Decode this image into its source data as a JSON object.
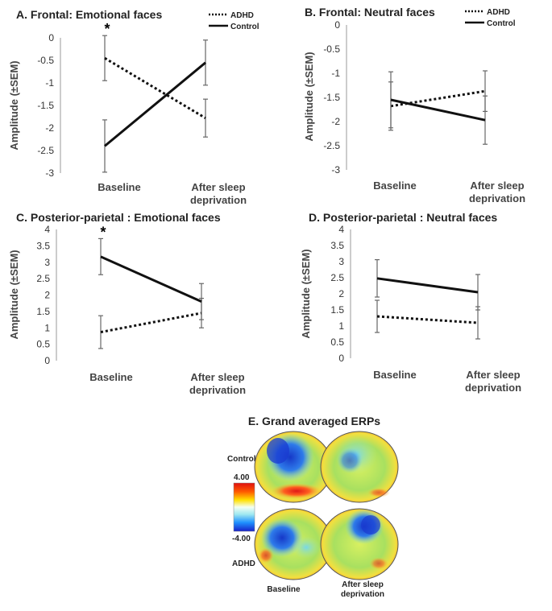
{
  "charts": [
    {
      "title": "A. Frontal: Emotional faces",
      "ylabel": "Amplitude (±SEM)",
      "yticks": [
        "0",
        "-0.5",
        "-1",
        "-1.5",
        "-2",
        "-2.5",
        "-3"
      ],
      "ylim": [
        -3,
        0
      ],
      "categories": [
        "Baseline",
        "After sleep deprivation"
      ],
      "category_lines": [
        [
          "Baseline"
        ],
        [
          "After sleep",
          "deprivation"
        ]
      ],
      "legend": [
        "ADHD",
        "Control"
      ],
      "annotation": "*",
      "series": [
        {
          "name": "ADHD",
          "style": "dotted",
          "values": [
            -0.45,
            -1.78
          ],
          "err": [
            0.5,
            0.42
          ]
        },
        {
          "name": "Control",
          "style": "solid",
          "values": [
            -2.4,
            -0.55
          ],
          "err": [
            0.58,
            0.5
          ]
        }
      ]
    },
    {
      "title": "B. Frontal: Neutral faces",
      "ylabel": "Amplitude (±SEM)",
      "yticks": [
        "0",
        "-0.5",
        "-1",
        "-1.5",
        "-2",
        "-2.5",
        "-3"
      ],
      "ylim": [
        -3,
        0
      ],
      "categories": [
        "Baseline",
        "After sleep deprivation"
      ],
      "category_lines": [
        [
          "Baseline"
        ],
        [
          "After sleep",
          "deprivation"
        ]
      ],
      "legend": [
        "ADHD",
        "Control"
      ],
      "annotation": "",
      "series": [
        {
          "name": "ADHD",
          "style": "dotted",
          "values": [
            -1.68,
            -1.37
          ],
          "err": [
            0.5,
            0.42
          ]
        },
        {
          "name": "Control",
          "style": "solid",
          "values": [
            -1.55,
            -1.97
          ],
          "err": [
            0.58,
            0.5
          ]
        }
      ]
    },
    {
      "title": "C. Posterior-parietal : Emotional faces",
      "ylabel": "Amplitude (±SEM)",
      "yticks": [
        "4",
        "3.5",
        "3",
        "2.5",
        "2",
        "1.5",
        "1",
        "0.5",
        "0"
      ],
      "ylim": [
        0,
        4
      ],
      "categories": [
        "Baseline",
        "After sleep deprivation"
      ],
      "category_lines": [
        [
          "Baseline"
        ],
        [
          "After sleep",
          "deprivation"
        ]
      ],
      "legend": [],
      "annotation": "*",
      "series": [
        {
          "name": "ADHD",
          "style": "dotted",
          "values": [
            0.87,
            1.45
          ],
          "err": [
            0.5,
            0.45
          ]
        },
        {
          "name": "Control",
          "style": "solid",
          "values": [
            3.17,
            1.8
          ],
          "err": [
            0.55,
            0.55
          ]
        }
      ]
    },
    {
      "title": "D. Posterior-parietal : Neutral faces",
      "ylabel": "Amplitude (±SEM)",
      "yticks": [
        "4",
        "3.5",
        "3",
        "2.5",
        "2",
        "1.5",
        "1",
        "0.5",
        "0"
      ],
      "ylim": [
        0,
        4
      ],
      "categories": [
        "Baseline",
        "After sleep deprivation"
      ],
      "category_lines": [
        [
          "Baseline"
        ],
        [
          "After sleep",
          "deprivation"
        ]
      ],
      "legend": [],
      "annotation": "",
      "series": [
        {
          "name": "ADHD",
          "style": "dotted",
          "values": [
            1.3,
            1.1
          ],
          "err": [
            0.5,
            0.5
          ]
        },
        {
          "name": "Control",
          "style": "solid",
          "values": [
            2.48,
            2.05
          ],
          "err": [
            0.58,
            0.55
          ]
        }
      ]
    }
  ],
  "erp_panel": {
    "title": "E. Grand averaged ERPs",
    "row_labels": [
      "Control",
      "ADHD"
    ],
    "col_labels": [
      "Baseline",
      "After sleep deprivation"
    ],
    "scale_max": "4.00",
    "scale_min": "-4.00"
  },
  "chart_data": [
    {
      "type": "line",
      "title": "A. Frontal: Emotional faces",
      "categories": [
        "Baseline",
        "After sleep deprivation"
      ],
      "ylabel": "Amplitude (±SEM)",
      "ylim": [
        -3,
        0
      ],
      "series": [
        {
          "name": "ADHD",
          "values": [
            -0.45,
            -1.78
          ]
        },
        {
          "name": "Control",
          "values": [
            -2.4,
            -0.55
          ]
        }
      ]
    },
    {
      "type": "line",
      "title": "B. Frontal: Neutral faces",
      "categories": [
        "Baseline",
        "After sleep deprivation"
      ],
      "ylabel": "Amplitude (±SEM)",
      "ylim": [
        -3,
        0
      ],
      "series": [
        {
          "name": "ADHD",
          "values": [
            -1.68,
            -1.37
          ]
        },
        {
          "name": "Control",
          "values": [
            -1.55,
            -1.97
          ]
        }
      ]
    },
    {
      "type": "line",
      "title": "C. Posterior-parietal : Emotional faces",
      "categories": [
        "Baseline",
        "After sleep deprivation"
      ],
      "ylabel": "Amplitude (±SEM)",
      "ylim": [
        0,
        4
      ],
      "series": [
        {
          "name": "ADHD",
          "values": [
            0.87,
            1.45
          ]
        },
        {
          "name": "Control",
          "values": [
            3.17,
            1.8
          ]
        }
      ]
    },
    {
      "type": "line",
      "title": "D. Posterior-parietal : Neutral faces",
      "categories": [
        "Baseline",
        "After sleep deprivation"
      ],
      "ylabel": "Amplitude (±SEM)",
      "ylim": [
        0,
        4
      ],
      "series": [
        {
          "name": "ADHD",
          "values": [
            1.3,
            1.1
          ]
        },
        {
          "name": "Control",
          "values": [
            2.48,
            2.05
          ]
        }
      ]
    }
  ]
}
